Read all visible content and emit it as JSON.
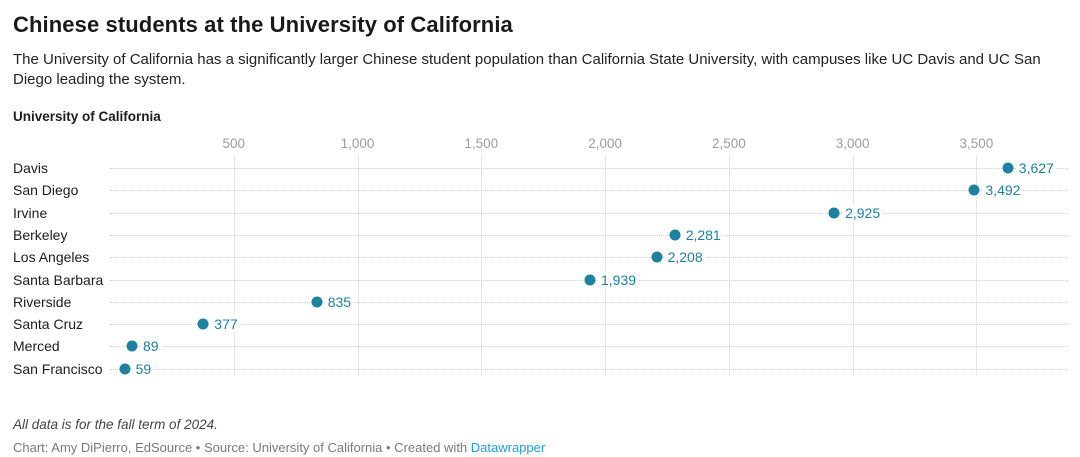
{
  "header": {
    "title": "Chinese students at the University of California",
    "subtitle": "The University of California has a significantly larger Chinese student population than California State University, with campuses like UC Davis and UC San Diego leading the system."
  },
  "chart_data": {
    "type": "scatter",
    "subtype": "dot-plot",
    "title": "University of California",
    "categories": [
      "Davis",
      "San Diego",
      "Irvine",
      "Berkeley",
      "Los Angeles",
      "Santa Barbara",
      "Riverside",
      "Santa Cruz",
      "Merced",
      "San Francisco"
    ],
    "values": [
      3627,
      3492,
      2925,
      2281,
      2208,
      1939,
      835,
      377,
      89,
      59
    ],
    "value_labels": [
      "3,627",
      "3,492",
      "2,925",
      "2,281",
      "2,208",
      "1,939",
      "835",
      "377",
      "89",
      "59"
    ],
    "xlabel": "",
    "ylabel": "",
    "xlim": [
      0,
      3870
    ],
    "xticks": [
      500,
      1000,
      1500,
      2000,
      2500,
      3000,
      3500
    ],
    "xtick_labels": [
      "500",
      "1,000",
      "1,500",
      "2,000",
      "2,500",
      "3,000",
      "3,500"
    ],
    "grid": "vertical-solid-with-horizontal-dotted-leaders",
    "legend": "none",
    "dot_color": "#1d81a2"
  },
  "footer": {
    "notes": "All data is for the fall term of 2024.",
    "byline_prefix": "Chart: Amy DiPierro, EdSource • Source: University of California • Created with ",
    "byline_link": "Datawrapper"
  },
  "colors": {
    "accent": "#1d81a2",
    "link": "#1d9de0",
    "tick": "#9c9c9c",
    "grid": "#e5e5e5",
    "leader": "#cfcfcf"
  }
}
